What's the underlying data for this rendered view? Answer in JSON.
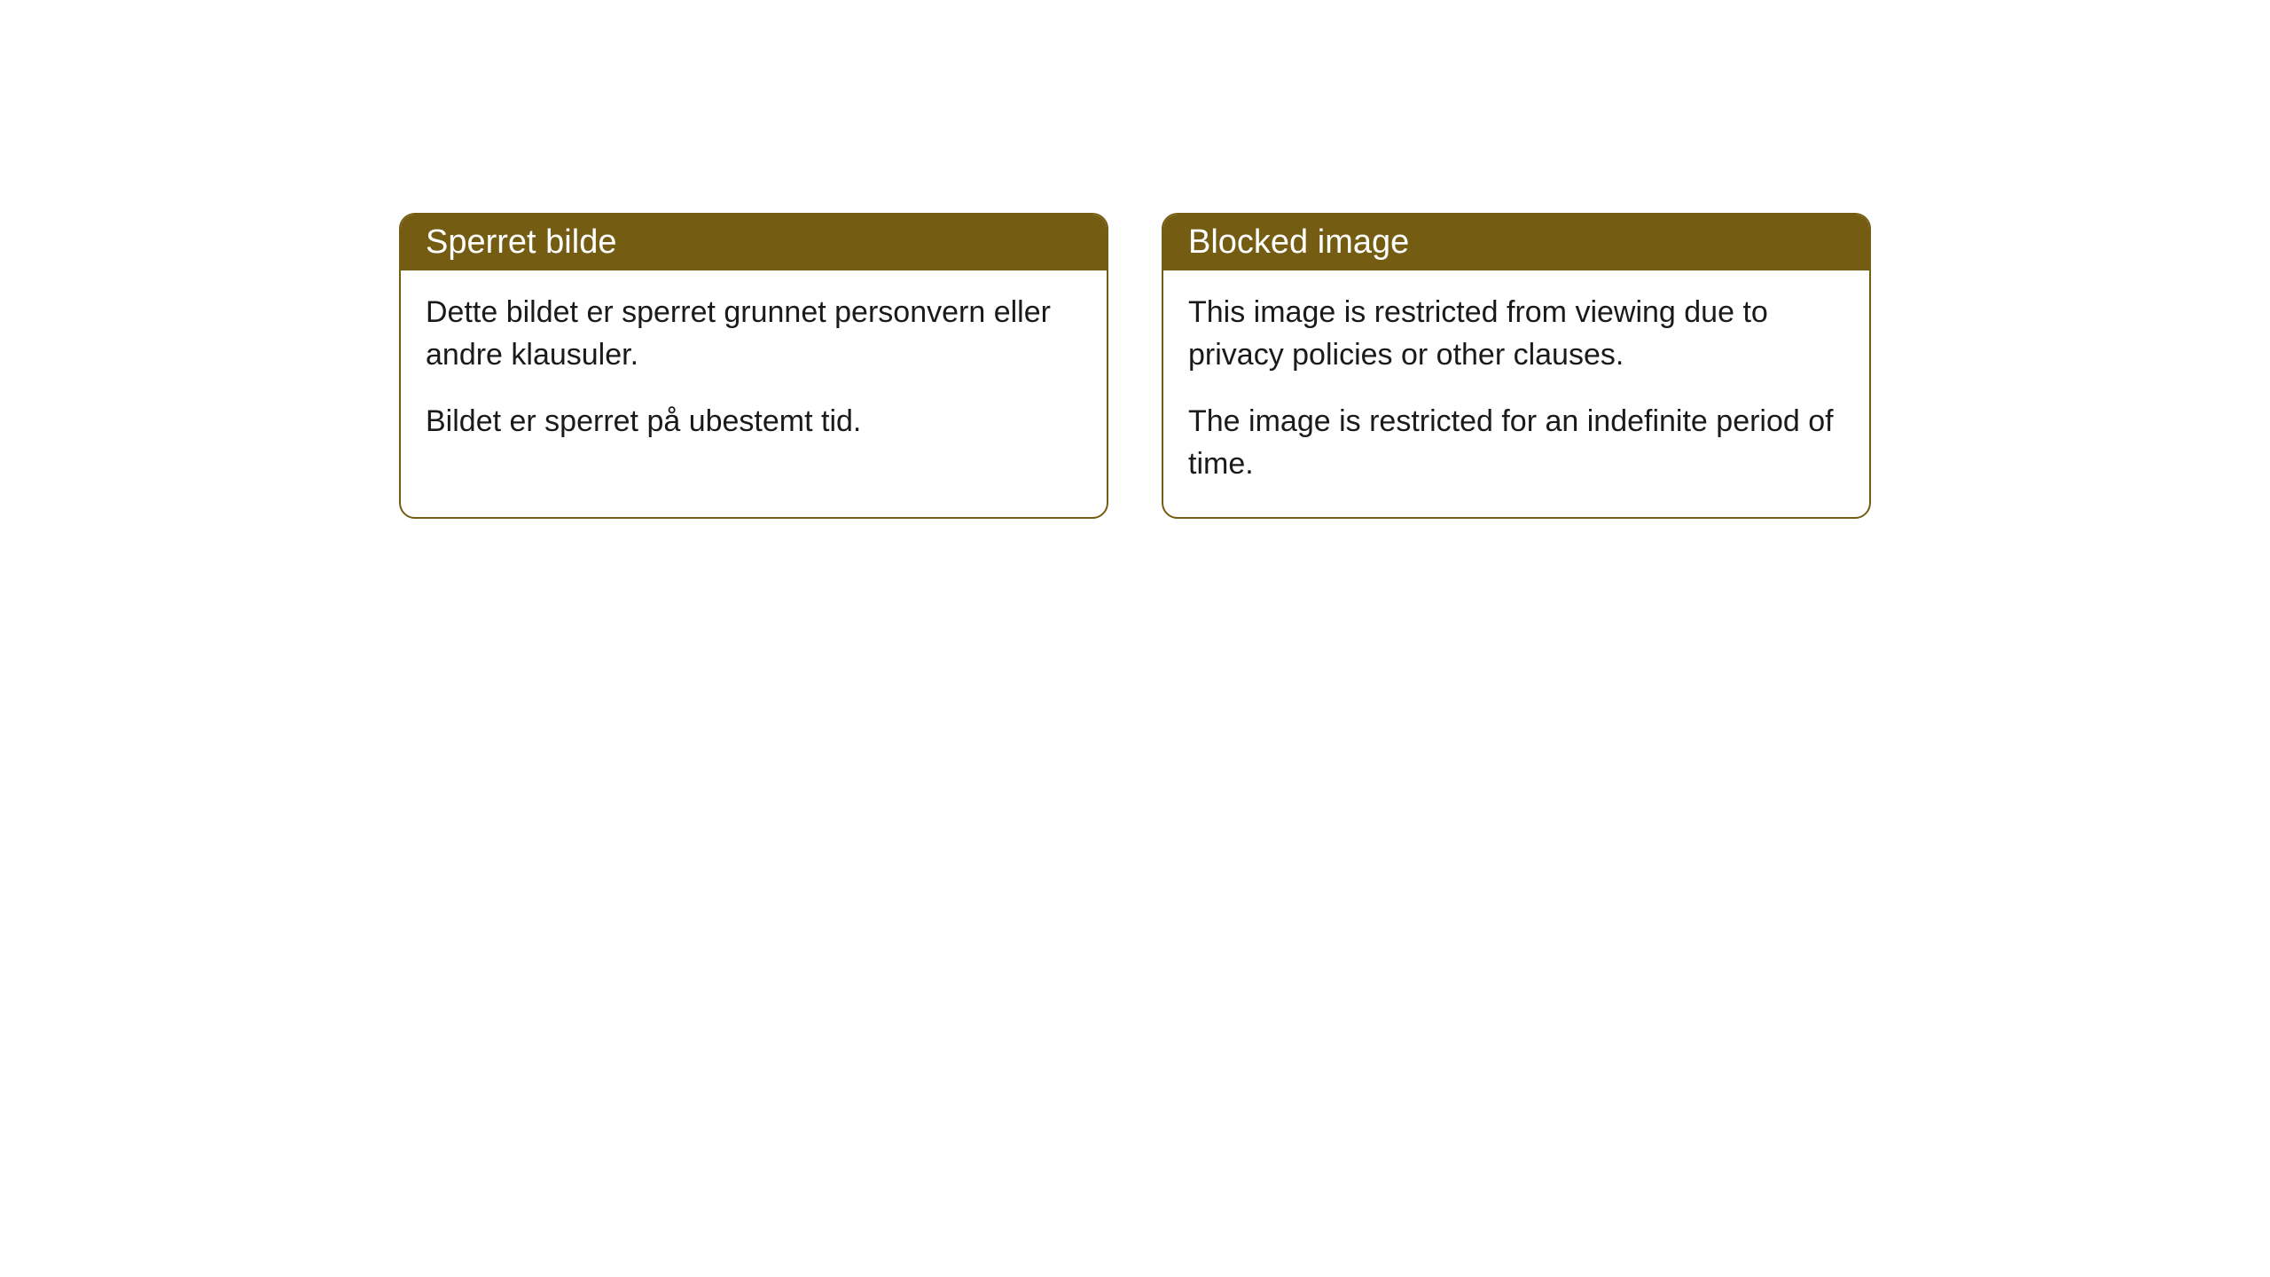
{
  "cards": [
    {
      "title": "Sperret bilde",
      "paragraph1": "Dette bildet er sperret grunnet personvern eller andre klausuler.",
      "paragraph2": "Bildet er sperret på ubestemt tid."
    },
    {
      "title": "Blocked image",
      "paragraph1": "This image is restricted from viewing due to privacy policies or other clauses.",
      "paragraph2": "The image is restricted for an indefinite period of time."
    }
  ],
  "style": {
    "header_background": "#755c13",
    "header_text_color": "#ffffff",
    "border_color": "#755c13",
    "body_text_color": "#1a1a1a",
    "card_background": "#ffffff",
    "border_radius": 18,
    "title_fontsize": 38,
    "body_fontsize": 34
  }
}
